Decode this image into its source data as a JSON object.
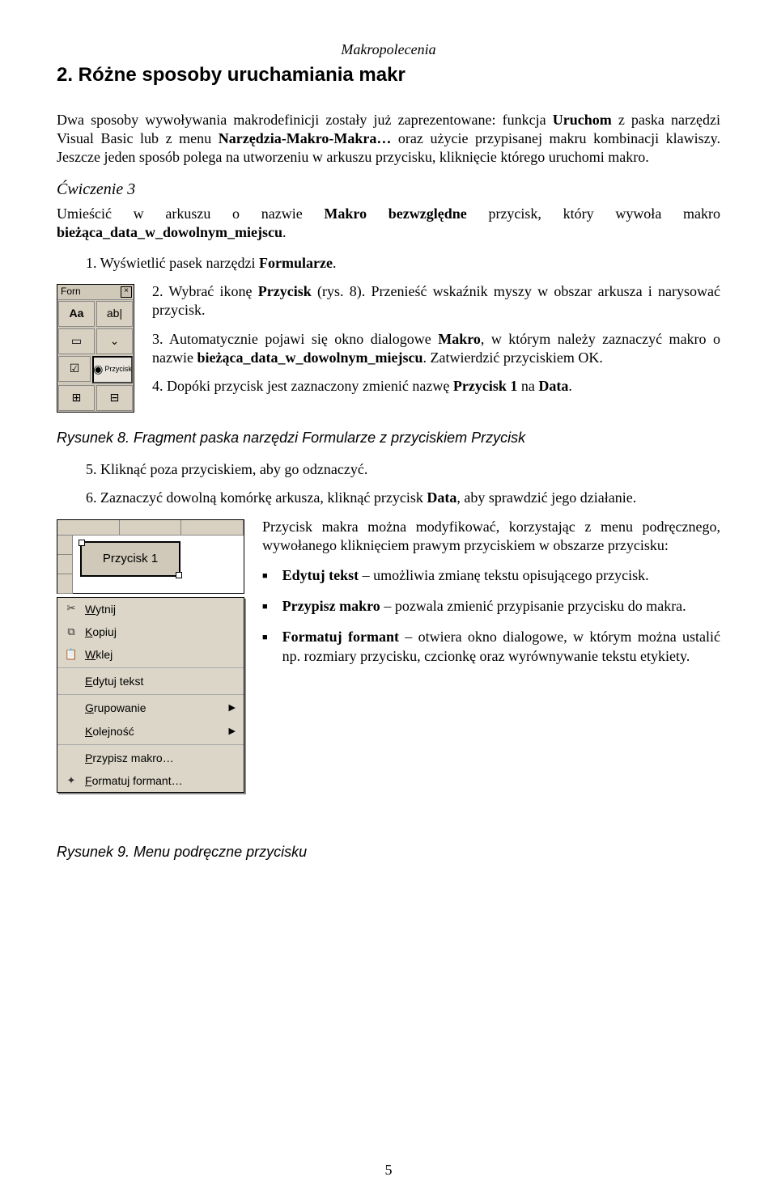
{
  "header": "Makropolecenia",
  "title": "2. Różne sposoby uruchamiania makr",
  "para1_a": "Dwa sposoby wywoływania makrodefinicji zostały już zaprezentowane: funkcja ",
  "para1_b": "Uruchom",
  "para1_c": " z paska narzędzi Visual Basic lub z menu ",
  "para1_d": "Narzędzia-Makro-Makra…",
  "para1_e": " oraz użycie przypisanej makru kombinacji klawiszy. Jeszcze jeden sposób polega na utworzeniu w arkuszu przycisku, kliknięcie którego uruchomi makro.",
  "ex_title": "Ćwiczenie 3",
  "ex_para_a": "Umieścić w arkuszu o nazwie ",
  "ex_para_b": "Makro bezwzględne",
  "ex_para_c": " przycisk, który wywoła makro ",
  "ex_para_d": "bieżąca_data_w_dowolnym_miejscu",
  "ex_para_e": ".",
  "step1_a": "1.   Wyświetlić pasek narzędzi ",
  "step1_b": "Formularze",
  "step1_c": ".",
  "step2_a": "2.   Wybrać ikonę ",
  "step2_b": "Przycisk",
  "step2_c": " (rys. 8). Przenieść wskaźnik myszy w obszar arkusza i narysować przycisk.",
  "step3_a": "3.   Automatycznie pojawi się okno dialogowe ",
  "step3_b": "Makro",
  "step3_c": ", w którym należy zaznaczyć makro o nazwie ",
  "step3_d": "bieżąca_data_w_dowolnym_miejscu",
  "step3_e": ". Zatwierdzić przyciskiem OK.",
  "step4_a": "4.   Dopóki przycisk jest zaznaczony zmienić nazwę ",
  "step4_b": "Przycisk 1",
  "step4_c": " na ",
  "step4_d": "Data",
  "step4_e": ".",
  "caption1": "Rysunek 8. Fragment paska narzędzi Formularze z przyciskiem Przycisk",
  "step5": "5.   Kliknąć poza przyciskiem, aby go odznaczyć.",
  "step6_a": "6.   Zaznaczyć dowolną komórkę arkusza, kliknąć przycisk ",
  "step6_b": "Data",
  "step6_c": ", aby sprawdzić jego działanie.",
  "para2": "Przycisk makra można modyfikować, korzystając z menu podręcznego, wywołanego kliknięciem prawym przyciskiem w obszarze przycisku:",
  "b1_a": "Edytuj tekst",
  "b1_b": " – umożliwia zmianę tekstu opisującego przycisk.",
  "b2_a": "Przypisz makro",
  "b2_b": " – pozwala zmienić przypisanie przycisku do makra.",
  "b3_a": "Formatuj formant",
  "b3_b": " – otwiera okno dialogowe, w którym można ustalić np. rozmiary przycisku, czcionkę oraz wyrównywanie tekstu etykiety.",
  "caption2": "Rysunek 9. Menu podręczne przycisku",
  "pagenum": "5",
  "toolbar": {
    "title": "Forn",
    "cells": [
      "Aa",
      "ab|",
      "▭",
      "⌄",
      "☑",
      "◉",
      "⊞",
      "⊟"
    ],
    "selected_label": "Przycisk"
  },
  "button_label": "Przycisk 1",
  "menu_items": [
    {
      "icon": "✂",
      "label": "Wytnij",
      "arrow": ""
    },
    {
      "icon": "⧉",
      "label": "Kopiuj",
      "arrow": ""
    },
    {
      "icon": "📋",
      "label": "Wklej",
      "arrow": ""
    },
    {
      "sep": true
    },
    {
      "icon": "",
      "label": "Edytuj tekst",
      "arrow": ""
    },
    {
      "sep": true
    },
    {
      "icon": "",
      "label": "Grupowanie",
      "arrow": "▶"
    },
    {
      "icon": "",
      "label": "Kolejność",
      "arrow": "▶"
    },
    {
      "sep": true
    },
    {
      "icon": "",
      "label": "Przypisz makro…",
      "arrow": ""
    },
    {
      "icon": "✦",
      "label": "Formatuj formant…",
      "arrow": ""
    }
  ]
}
